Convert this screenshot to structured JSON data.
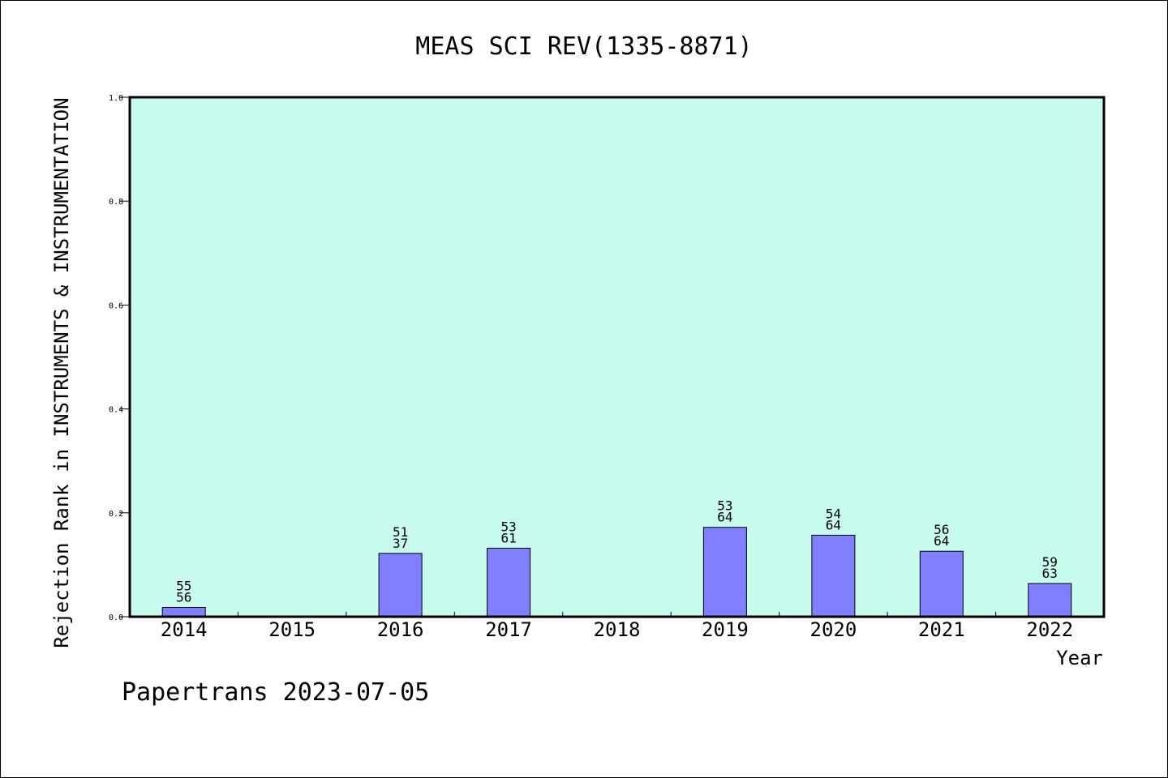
{
  "chart_data": {
    "type": "bar",
    "title": "MEAS SCI REV(1335-8871)",
    "xlabel": "Year",
    "ylabel": "Rejection Rank in INSTRUMENTS & INSTRUMENTATION",
    "categories": [
      "2014",
      "2015",
      "2016",
      "2017",
      "2018",
      "2019",
      "2020",
      "2021",
      "2022"
    ],
    "values": [
      0.018,
      null,
      0.122,
      0.132,
      null,
      0.172,
      0.157,
      0.126,
      0.064
    ],
    "labels_top": [
      "55",
      "",
      "51",
      "53",
      "",
      "53",
      "54",
      "56",
      "59"
    ],
    "labels_bottom": [
      "56",
      "",
      "37",
      "61",
      "",
      "64",
      "64",
      "64",
      "63"
    ],
    "ylim": [
      0,
      1.0
    ],
    "yticks": [
      "0.0",
      "0.2",
      "0.4",
      "0.6",
      "0.8",
      "1.0"
    ],
    "ytick_values": [
      0,
      0.2,
      0.4,
      0.6,
      0.8,
      1.0
    ],
    "grid": false,
    "colors": {
      "plot_background": "#c8fcee",
      "bar_fill": "#8080ff",
      "bar_stroke": "#000000",
      "axis": "#000000"
    }
  },
  "footer": "Papertrans 2023-07-05"
}
